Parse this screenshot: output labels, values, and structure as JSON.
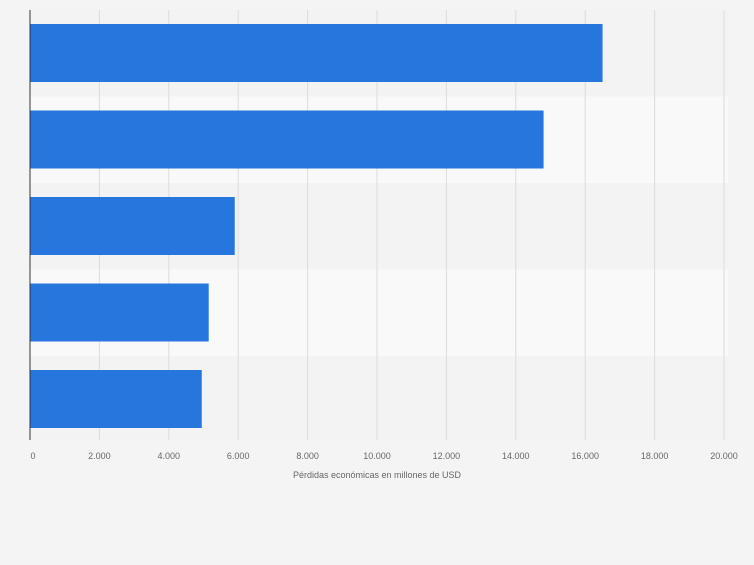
{
  "chart_data": {
    "type": "bar",
    "orientation": "horizontal",
    "categories": [
      "",
      "",
      "",
      "",
      ""
    ],
    "values": [
      16500,
      14800,
      5900,
      5150,
      4950
    ],
    "title": "",
    "xlabel": "Pérdidas económicas en millones de USD",
    "ylabel": "",
    "xlim": [
      0,
      20000
    ],
    "x_ticks": [
      0,
      2000,
      4000,
      6000,
      8000,
      10000,
      12000,
      14000,
      16000,
      18000,
      20000
    ],
    "x_tick_labels": [
      "0",
      "2.000",
      "4.000",
      "6.000",
      "8.000",
      "10.000",
      "12.000",
      "14.000",
      "16.000",
      "18.000",
      "20.000"
    ],
    "grid": true,
    "legend": "none",
    "bar_color": "#2776dd"
  }
}
